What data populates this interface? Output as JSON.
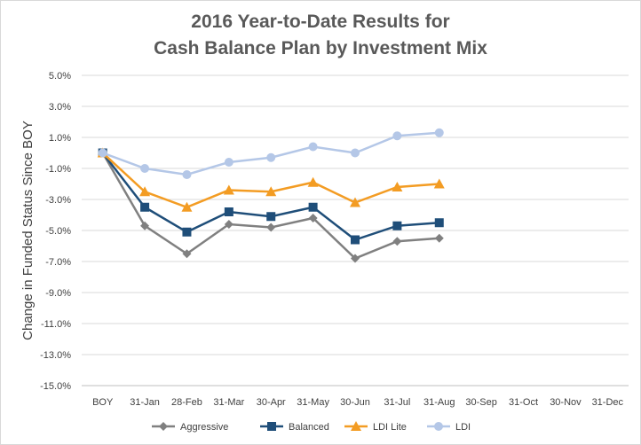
{
  "chart_data": {
    "type": "line",
    "title": [
      "2016 Year-to-Date Results for",
      "Cash Balance Plan by Investment Mix"
    ],
    "xlabel": "",
    "ylabel": "Change in Funded Status Since BOY",
    "categories": [
      "BOY",
      "31-Jan",
      "28-Feb",
      "31-Mar",
      "30-Apr",
      "31-May",
      "30-Jun",
      "31-Jul",
      "31-Aug",
      "30-Sep",
      "31-Oct",
      "30-Nov",
      "31-Dec"
    ],
    "ylim": [
      -15.0,
      5.0
    ],
    "yticks": [
      5.0,
      3.0,
      1.0,
      -1.0,
      -3.0,
      -5.0,
      -7.0,
      -9.0,
      -11.0,
      -13.0,
      -15.0
    ],
    "ytick_labels": [
      "5.0%",
      "3.0%",
      "1.0%",
      "-1.0%",
      "-3.0%",
      "-5.0%",
      "-7.0%",
      "-9.0%",
      "-11.0%",
      "-13.0%",
      "-15.0%"
    ],
    "grid": true,
    "legend_position": "bottom",
    "series": [
      {
        "name": "Aggressive",
        "color": "#808080",
        "marker": "diamond",
        "values": [
          0.0,
          -4.7,
          -6.5,
          -4.6,
          -4.8,
          -4.2,
          -6.8,
          -5.7,
          -5.5,
          null,
          null,
          null,
          null
        ]
      },
      {
        "name": "Balanced",
        "color": "#1f4e79",
        "marker": "square",
        "values": [
          0.0,
          -3.5,
          -5.1,
          -3.8,
          -4.1,
          -3.5,
          -5.6,
          -4.7,
          -4.5,
          null,
          null,
          null,
          null
        ]
      },
      {
        "name": "LDI Lite",
        "color": "#f39c23",
        "marker": "triangle",
        "values": [
          0.0,
          -2.5,
          -3.5,
          -2.4,
          -2.5,
          -1.9,
          -3.2,
          -2.2,
          -2.0,
          null,
          null,
          null,
          null
        ]
      },
      {
        "name": "LDI",
        "color": "#b4c7e7",
        "marker": "circle",
        "values": [
          0.0,
          -1.0,
          -1.4,
          -0.6,
          -0.3,
          0.4,
          0.0,
          1.1,
          1.3,
          null,
          null,
          null,
          null
        ]
      }
    ]
  }
}
